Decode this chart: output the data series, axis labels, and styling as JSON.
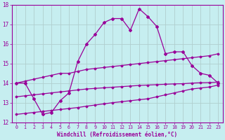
{
  "xlabel": "Windchill (Refroidissement éolien,°C)",
  "background_color": "#c6eef0",
  "line_color": "#990099",
  "grid_color": "#b0cece",
  "xlim": [
    -0.5,
    23.5
  ],
  "ylim": [
    12,
    18
  ],
  "xticks": [
    0,
    1,
    2,
    3,
    4,
    5,
    6,
    7,
    8,
    9,
    10,
    11,
    12,
    13,
    14,
    15,
    16,
    17,
    18,
    19,
    20,
    21,
    22,
    23
  ],
  "yticks": [
    12,
    13,
    14,
    15,
    16,
    17,
    18
  ],
  "line1_x": [
    0,
    1,
    2,
    3,
    4,
    5,
    6,
    7,
    8,
    9,
    10,
    11,
    12,
    13,
    14,
    15,
    16,
    17,
    18
  ],
  "line1_y": [
    14.0,
    14.0,
    13.2,
    12.4,
    12.5,
    13.1,
    13.5,
    15.1,
    16.0,
    16.5,
    17.1,
    17.3,
    17.3,
    16.7,
    17.8,
    17.4,
    16.9,
    15.5,
    15.6
  ],
  "line2_x": [
    0,
    1,
    2,
    3,
    4,
    5,
    6,
    7,
    8,
    9,
    10,
    11,
    12,
    13,
    14,
    15,
    16,
    17,
    18,
    19,
    20,
    21,
    22,
    23
  ],
  "line2_y": [
    14.0,
    14.1,
    14.2,
    14.3,
    14.4,
    14.5,
    14.5,
    14.6,
    14.7,
    14.75,
    14.8,
    14.85,
    14.9,
    14.95,
    15.0,
    15.05,
    15.1,
    15.15,
    15.2,
    15.25,
    15.3,
    15.35,
    15.4,
    15.5
  ],
  "line3_x": [
    0,
    1,
    2,
    3,
    4,
    5,
    6,
    7,
    8,
    9,
    10,
    11,
    12,
    13,
    14,
    15,
    16,
    17,
    18,
    19,
    20,
    21,
    22,
    23
  ],
  "line3_y": [
    13.3,
    13.35,
    13.4,
    13.45,
    13.5,
    13.55,
    13.6,
    13.65,
    13.7,
    13.73,
    13.76,
    13.79,
    13.82,
    13.85,
    13.88,
    13.9,
    13.92,
    13.94,
    13.96,
    13.97,
    14.0,
    14.02,
    14.03,
    14.05
  ],
  "line4_x": [
    0,
    1,
    2,
    3,
    4,
    5,
    6,
    7,
    8,
    9,
    10,
    11,
    12,
    13,
    14,
    15,
    16,
    17,
    18,
    19,
    20,
    21,
    22,
    23
  ],
  "line4_y": [
    12.4,
    12.45,
    12.5,
    12.55,
    12.6,
    12.65,
    12.7,
    12.75,
    12.82,
    12.88,
    12.94,
    13.0,
    13.05,
    13.1,
    13.15,
    13.2,
    13.3,
    13.4,
    13.5,
    13.6,
    13.7,
    13.75,
    13.8,
    13.9
  ],
  "line1_extra_x": [
    19,
    20,
    21,
    22,
    23
  ],
  "line1_extra_y": [
    15.6,
    14.9,
    14.5,
    14.4,
    14.0
  ]
}
